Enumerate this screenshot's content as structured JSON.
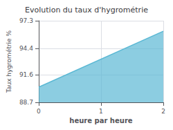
{
  "chart_data": {
    "type": "area",
    "title": "Evolution du taux d'hygrométrie",
    "xlabel": "heure par heure",
    "ylabel": "Taux hygrométrie %",
    "x": [
      0,
      2
    ],
    "values": [
      90.3,
      96.2
    ],
    "color": "#5bb8d4",
    "xlim": [
      0,
      2
    ],
    "xticks": [
      0,
      1,
      2
    ],
    "ylim": [
      88.7,
      97.3
    ],
    "yticks": [
      88.7,
      91.6,
      94.4,
      97.3
    ],
    "grid": true
  }
}
